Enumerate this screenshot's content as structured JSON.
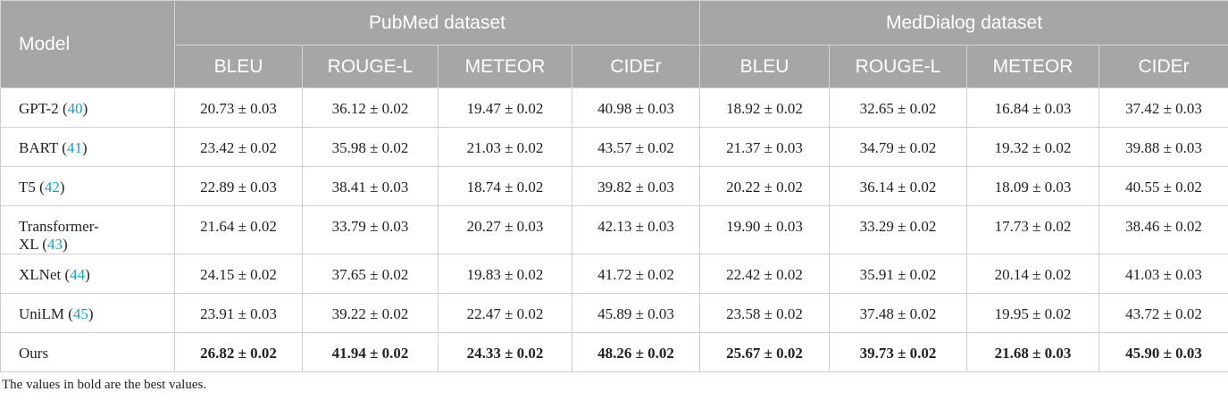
{
  "table": {
    "header": {
      "model": "Model",
      "groups": [
        "PubMed dataset",
        "MedDialog dataset"
      ],
      "metrics": [
        "BLEU",
        "ROUGE-L",
        "METEOR",
        "CIDEr",
        "BLEU",
        "ROUGE-L",
        "METEOR",
        "CIDEr"
      ]
    },
    "rows": [
      {
        "name": "GPT-2",
        "ref": "(40)",
        "cells": [
          "20.73 ± 0.03",
          "36.12 ± 0.02",
          "19.47 ± 0.02",
          "40.98 ± 0.03",
          "18.92 ± 0.02",
          "32.65 ± 0.02",
          "16.84 ± 0.03",
          "37.42 ± 0.03"
        ]
      },
      {
        "name": "BART",
        "ref": "(41)",
        "cells": [
          "23.42 ± 0.02",
          "35.98 ± 0.02",
          "21.03 ± 0.02",
          "43.57 ± 0.02",
          "21.37 ± 0.03",
          "34.79 ± 0.02",
          "19.32 ± 0.02",
          "39.88 ± 0.03"
        ]
      },
      {
        "name": "T5",
        "ref": "(42)",
        "cells": [
          "22.89 ± 0.03",
          "38.41 ± 0.03",
          "18.74 ± 0.02",
          "39.82 ± 0.03",
          "20.22 ± 0.02",
          "36.14 ± 0.02",
          "18.09 ± 0.03",
          "40.55 ± 0.02"
        ]
      },
      {
        "name": "Transformer-XL",
        "ref": "(43)",
        "cells": [
          "21.64 ± 0.02",
          "33.79 ± 0.03",
          "20.27 ± 0.03",
          "42.13 ± 0.03",
          "19.90 ± 0.03",
          "33.29 ± 0.02",
          "17.73 ± 0.02",
          "38.46 ± 0.02"
        ]
      },
      {
        "name": "XLNet",
        "ref": "(44)",
        "cells": [
          "24.15 ± 0.02",
          "37.65 ± 0.02",
          "19.83 ± 0.02",
          "41.72 ± 0.02",
          "22.42 ± 0.02",
          "35.91 ± 0.02",
          "20.14 ± 0.02",
          "41.03 ± 0.03"
        ]
      },
      {
        "name": "UniLM",
        "ref": "(45)",
        "cells": [
          "23.91 ± 0.03",
          "39.22 ± 0.02",
          "22.47 ± 0.02",
          "45.89 ± 0.03",
          "23.58 ± 0.02",
          "37.48 ± 0.02",
          "19.95 ± 0.02",
          "43.72 ± 0.02"
        ]
      },
      {
        "name": "Ours",
        "cells": [
          "26.82 ± 0.02",
          "41.94 ± 0.02",
          "24.33 ± 0.02",
          "48.26 ± 0.02",
          "25.67 ± 0.02",
          "39.73 ± 0.02",
          "21.68 ± 0.03",
          "45.90 ± 0.03"
        ],
        "bold": true
      }
    ],
    "footnote": "The values in bold are the best values."
  }
}
